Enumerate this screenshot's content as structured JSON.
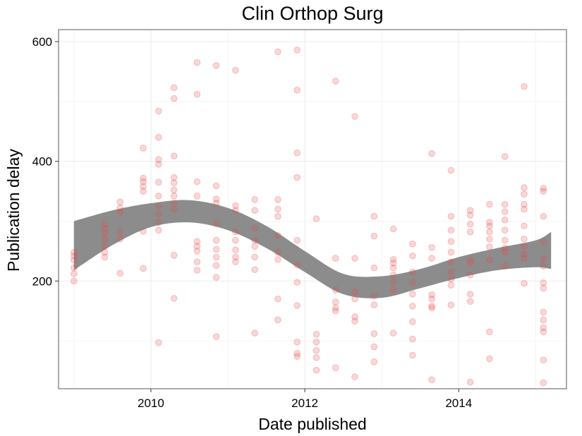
{
  "chart_data": {
    "type": "scatter",
    "title": "Clin Orthop Surg",
    "xlabel": "Date published",
    "ylabel": "Publication delay",
    "x_is_year_decimal": true,
    "xlim": [
      2008.8,
      2015.4
    ],
    "ylim": [
      20,
      620
    ],
    "x_ticks": [
      2010,
      2012,
      2014
    ],
    "x_tick_labels": [
      "2010",
      "2012",
      "2014"
    ],
    "y_ticks": [
      200,
      400,
      600
    ],
    "y_tick_labels": [
      "200",
      "400",
      "600"
    ],
    "grid": true,
    "legend": "none",
    "point_color": "#e8484a",
    "point_opacity": 0.22,
    "band_color": "#8c8c8c",
    "smooth_band": {
      "x": [
        2009.0,
        2009.5,
        2010.0,
        2010.5,
        2011.0,
        2011.5,
        2012.0,
        2012.5,
        2013.0,
        2013.5,
        2014.0,
        2014.5,
        2015.0,
        2015.2
      ],
      "lower": [
        218,
        260,
        290,
        298,
        285,
        255,
        215,
        178,
        172,
        188,
        205,
        218,
        223,
        220
      ],
      "upper": [
        300,
        318,
        330,
        335,
        322,
        292,
        250,
        212,
        208,
        220,
        240,
        255,
        268,
        282
      ]
    },
    "points": [
      {
        "x": 2009.0,
        "y": [
          200,
          212,
          222,
          235,
          242,
          248
        ]
      },
      {
        "x": 2009.4,
        "y": [
          240,
          248,
          258,
          270,
          280,
          288,
          295
        ]
      },
      {
        "x": 2009.6,
        "y": [
          213,
          270,
          282,
          315,
          322,
          332
        ]
      },
      {
        "x": 2009.9,
        "y": [
          221,
          283,
          350,
          358,
          366,
          372,
          422
        ]
      },
      {
        "x": 2010.1,
        "y": [
          97,
          285,
          298,
          312,
          325,
          342,
          365,
          395,
          403,
          440,
          484
        ]
      },
      {
        "x": 2010.3,
        "y": [
          171,
          243,
          320,
          330,
          342,
          352,
          364,
          373,
          409,
          505,
          523
        ]
      },
      {
        "x": 2010.6,
        "y": [
          218,
          232,
          250,
          258,
          266,
          342,
          366,
          512,
          565
        ]
      },
      {
        "x": 2010.85,
        "y": [
          107,
          206,
          226,
          240,
          253,
          268,
          296,
          330,
          337,
          359,
          560
        ]
      },
      {
        "x": 2011.1,
        "y": [
          232,
          240,
          252,
          268,
          282,
          318,
          326,
          552
        ]
      },
      {
        "x": 2011.35,
        "y": [
          113,
          219,
          240,
          258,
          268,
          288,
          318,
          336
        ]
      },
      {
        "x": 2011.65,
        "y": [
          135,
          170,
          236,
          248,
          276,
          308,
          320,
          336,
          583
        ]
      },
      {
        "x": 2011.9,
        "y": [
          74,
          79,
          98,
          159,
          198,
          227,
          268,
          373,
          414,
          519,
          586
        ]
      },
      {
        "x": 2012.15,
        "y": [
          51,
          72,
          84,
          98,
          111,
          304
        ]
      },
      {
        "x": 2012.4,
        "y": [
          55,
          150,
          155,
          165,
          185,
          238,
          534
        ]
      },
      {
        "x": 2012.65,
        "y": [
          40,
          133,
          140,
          170,
          182,
          238,
          475
        ]
      },
      {
        "x": 2012.9,
        "y": [
          65,
          90,
          112,
          160,
          175,
          222,
          275,
          308
        ]
      },
      {
        "x": 2013.15,
        "y": [
          113,
          185,
          198,
          210,
          222,
          230,
          236,
          287
        ]
      },
      {
        "x": 2013.4,
        "y": [
          76,
          103,
          132,
          158,
          178,
          198,
          215,
          242,
          262
        ]
      },
      {
        "x": 2013.65,
        "y": [
          35,
          155,
          158,
          170,
          177,
          238,
          256,
          413
        ]
      },
      {
        "x": 2013.9,
        "y": [
          160,
          193,
          203,
          215,
          232,
          248,
          266,
          285,
          308,
          385
        ]
      },
      {
        "x": 2014.15,
        "y": [
          31,
          166,
          178,
          210,
          230,
          235,
          282,
          295,
          310,
          318
        ]
      },
      {
        "x": 2014.4,
        "y": [
          70,
          115,
          235,
          257,
          270,
          282,
          292,
          298,
          328
        ]
      },
      {
        "x": 2014.6,
        "y": [
          225,
          248,
          255,
          268,
          285,
          302,
          316,
          328,
          408
        ]
      },
      {
        "x": 2014.85,
        "y": [
          196,
          238,
          245,
          258,
          270,
          292,
          320,
          328,
          345,
          356,
          525
        ]
      },
      {
        "x": 2015.1,
        "y": [
          30,
          68,
          115,
          122,
          135,
          148,
          188,
          197,
          225,
          237,
          265,
          308,
          350,
          355
        ]
      }
    ]
  }
}
